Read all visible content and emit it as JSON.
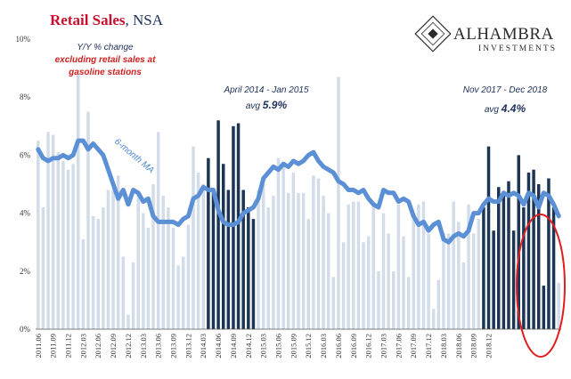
{
  "chart_data": {
    "type": "bar",
    "title": "Retail Sales",
    "title_suffix": ", NSA",
    "yticks": [
      "0%",
      "2%",
      "4%",
      "6%",
      "8%",
      "10%"
    ],
    "ylim": [
      0,
      10
    ],
    "series_label": "6-month MA",
    "subtitle_lines": [
      "Y/Y % change"
    ],
    "note_lines": [
      "excluding retail sales at",
      "gasoline stations"
    ],
    "annotations": [
      {
        "period": "April 2014 - Jan 2015",
        "avg_prefix": "avg ",
        "avg_value": "5.9%"
      },
      {
        "period": "Nov 2017 - Dec 2018",
        "avg_prefix": "avg ",
        "avg_value": "4.4%"
      }
    ],
    "xtick_labels": [
      "2011.06",
      "2011.09",
      "2011.12",
      "2012.03",
      "2012.06",
      "2012.09",
      "2012.12",
      "2013.03",
      "2013.06",
      "2013.09",
      "2013.12",
      "2014.03",
      "2014.06",
      "2014.09",
      "2014.12",
      "2015.03",
      "2015.06",
      "2015.09",
      "2015.12",
      "2016.03",
      "2016.06",
      "2016.09",
      "2016.12",
      "2017.03",
      "2017.06",
      "2017.09",
      "2017.12",
      "2018.03",
      "2018.06",
      "2018.09",
      "2018.12"
    ],
    "start_month": "2011.06",
    "values": [
      6.5,
      4.2,
      6.8,
      6.7,
      6.1,
      5.8,
      5.5,
      5.7,
      8.8,
      3.1,
      7.5,
      3.9,
      3.8,
      4.2,
      4.8,
      4.8,
      5.3,
      2.5,
      0.5,
      2.3,
      4.7,
      4.0,
      3.5,
      5.0,
      6.8,
      4.6,
      4.2,
      3.5,
      2.2,
      2.5,
      3.6,
      6.3,
      5.4,
      5.0,
      5.9,
      4.8,
      7.2,
      5.7,
      4.8,
      7.0,
      7.1,
      4.8,
      4.2,
      3.8,
      4.8,
      5.0,
      4.2,
      4.6,
      5.9,
      5.7,
      4.7,
      5.4,
      4.7,
      4.7,
      3.8,
      5.3,
      5.2,
      4.6,
      4.0,
      1.8,
      8.7,
      3.0,
      4.3,
      4.4,
      4.4,
      3.0,
      3.2,
      4.3,
      2.0,
      4.0,
      3.3,
      2.0,
      4.3,
      3.2,
      1.8,
      3.8,
      4.3,
      4.4,
      3.3,
      0.7,
      1.7,
      3.3,
      3.3,
      4.4,
      3.7,
      2.3,
      4.3,
      3.3,
      3.8,
      4.2,
      6.3,
      3.4,
      4.9,
      4.7,
      5.1,
      3.4,
      6.0,
      4.2,
      5.4,
      5.5,
      5.0,
      1.5,
      5.2,
      4.2,
      1.6
    ],
    "highlight_ranges": [
      [
        34,
        43
      ],
      [
        89,
        103
      ]
    ],
    "ma": [
      6.2,
      5.9,
      5.8,
      5.9,
      5.9,
      6.0,
      5.9,
      6.0,
      6.5,
      6.5,
      6.2,
      6.4,
      6.2,
      6.0,
      5.5,
      5.0,
      4.5,
      4.8,
      4.3,
      4.8,
      4.7,
      4.4,
      4.5,
      3.9,
      3.7,
      3.7,
      3.7,
      3.7,
      3.6,
      3.8,
      3.9,
      4.5,
      4.6,
      4.9,
      4.8,
      4.8,
      4.1,
      3.7,
      3.6,
      3.6,
      3.7,
      4.0,
      4.1,
      4.2,
      4.5,
      5.2,
      5.4,
      5.6,
      5.5,
      5.7,
      5.6,
      5.8,
      5.7,
      5.8,
      6.0,
      6.1,
      5.8,
      5.6,
      5.5,
      5.4,
      5.1,
      5.0,
      4.8,
      4.8,
      4.7,
      4.8,
      4.5,
      4.3,
      4.2,
      4.8,
      4.7,
      4.7,
      4.4,
      4.5,
      4.4,
      3.9,
      3.6,
      3.7,
      3.4,
      3.6,
      3.7,
      3.1,
      3.0,
      3.2,
      3.3,
      3.2,
      3.4,
      4.0,
      4.0,
      4.3,
      4.5,
      4.4,
      4.4,
      4.7,
      4.6,
      4.7,
      4.6,
      4.3,
      4.7,
      4.6,
      4.2,
      4.7,
      4.6,
      4.3,
      3.9
    ],
    "colors": {
      "light_bar": "#d3dce9",
      "dark_bar": "#1c3555",
      "ma_line": "#5b8fd6",
      "circle": "#e11d1d"
    }
  },
  "logo": {
    "name": "ALHAMBRA",
    "sub": "INVESTMENTS"
  }
}
